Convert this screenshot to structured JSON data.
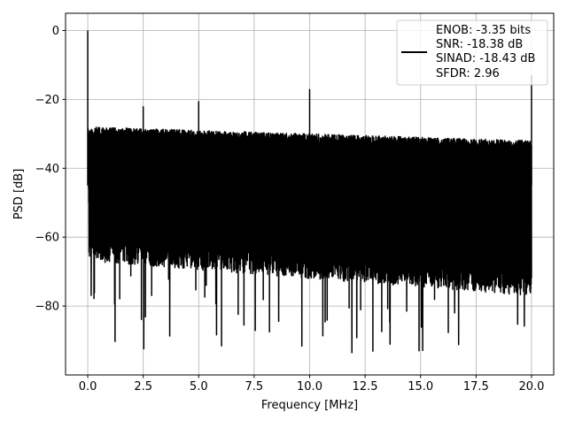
{
  "chart_data": {
    "type": "line",
    "xlabel": "Frequency [MHz]",
    "ylabel": "PSD [dB]",
    "xlim": [
      -1,
      21
    ],
    "ylim": [
      -100,
      5
    ],
    "xticks": [
      0.0,
      2.5,
      5.0,
      7.5,
      10.0,
      12.5,
      15.0,
      17.5,
      20.0
    ],
    "xtick_labels": [
      "0.0",
      "2.5",
      "5.0",
      "7.5",
      "10.0",
      "12.5",
      "15.0",
      "17.5",
      "20.0"
    ],
    "yticks": [
      0,
      -20,
      -40,
      -60,
      -80
    ],
    "ytick_labels": [
      "0",
      "−20",
      "−40",
      "−60",
      "−80"
    ],
    "grid": true,
    "legend_placement": "upper-right",
    "legend_lines": [
      "ENOB: -3.35 bits",
      "SNR: -18.38 dB",
      "SINAD: -18.43 dB",
      "SFDR: 2.96"
    ],
    "series_color": "#000000",
    "noise_floor_upper_db": [
      -28,
      -32
    ],
    "noise_floor_lower_db": [
      -65,
      -75
    ],
    "deepest_dip_db": -94,
    "peaks": [
      {
        "x": 0.0,
        "y": 0
      },
      {
        "x": 2.5,
        "y": -22
      },
      {
        "x": 5.0,
        "y": -20.5
      },
      {
        "x": 10.0,
        "y": -17
      },
      {
        "x": 20.0,
        "y": -13
      }
    ]
  }
}
